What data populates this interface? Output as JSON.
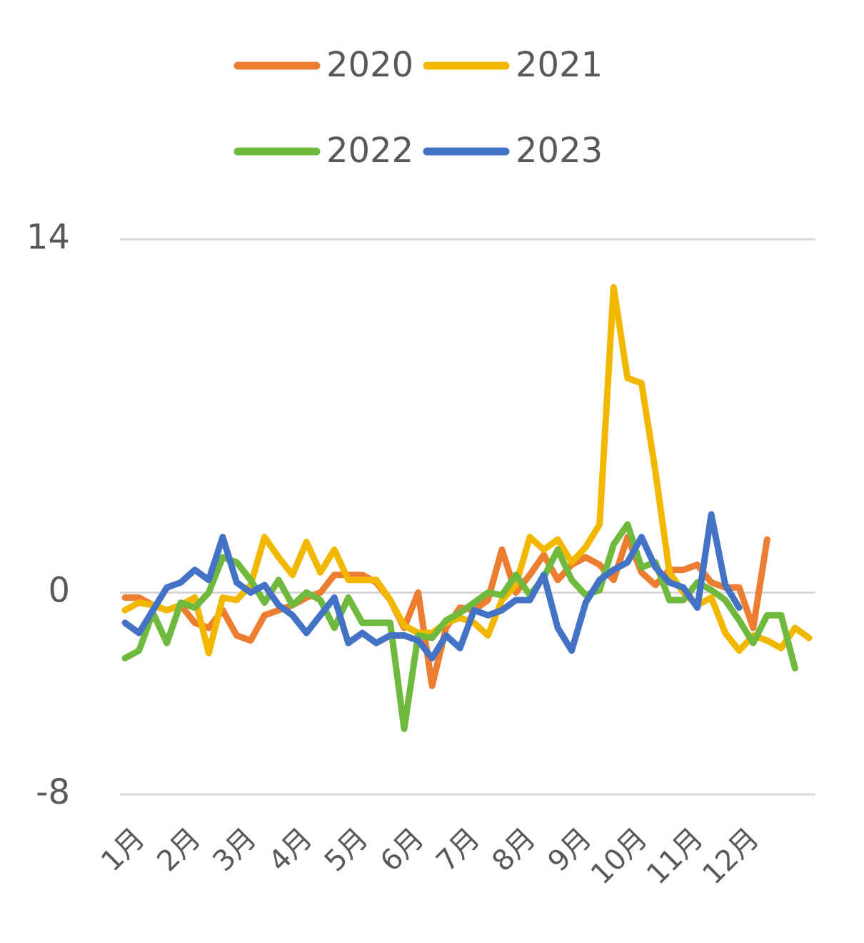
{
  "chart_data": {
    "type": "line",
    "categories": [
      "1月",
      null,
      null,
      null,
      "2月",
      null,
      null,
      null,
      "3月",
      null,
      null,
      null,
      "4月",
      null,
      null,
      null,
      "5月",
      null,
      null,
      null,
      "6月",
      null,
      null,
      null,
      "7月",
      null,
      null,
      null,
      "8月",
      null,
      null,
      null,
      "9月",
      null,
      null,
      null,
      "10月",
      null,
      null,
      null,
      "11月",
      null,
      null,
      null,
      "12月",
      null,
      null,
      null,
      null,
      null
    ],
    "series": [
      {
        "name": "2020",
        "color": "#ed7d31",
        "values": [
          -0.2,
          -0.2,
          -0.5,
          -0.7,
          -0.5,
          -1.2,
          -1.4,
          -0.7,
          -1.7,
          -1.9,
          -0.9,
          -0.7,
          -0.5,
          -0.2,
          0,
          0.7,
          0.7,
          0.7,
          0.4,
          -0.3,
          -1.4,
          0,
          -3.7,
          -1.4,
          -0.6,
          -0.7,
          -0.3,
          1.7,
          0,
          0.7,
          1.5,
          0.5,
          1.1,
          1.4,
          1.1,
          0.5,
          2.2,
          0.8,
          0.3,
          0.9,
          0.9,
          1.1,
          0.4,
          0.2,
          0.2,
          -1.4,
          2.1,
          null,
          null,
          null
        ]
      },
      {
        "name": "2021",
        "color": "#f2b800",
        "values": [
          -0.7,
          -0.4,
          -0.5,
          -0.7,
          -0.5,
          -0.2,
          -2.4,
          -0.2,
          -0.3,
          0.3,
          2.2,
          1.4,
          0.7,
          2.0,
          0.8,
          1.7,
          0.5,
          0.5,
          0.5,
          -0.3,
          -1.3,
          -1.6,
          -1.6,
          -1.2,
          -1.0,
          -1.2,
          -1.7,
          -0.3,
          0.3,
          2.2,
          1.7,
          2.1,
          1.2,
          1.8,
          2.7,
          12.1,
          8.5,
          8.3,
          4.8,
          0.8,
          0,
          -0.5,
          -0.2,
          -1.6,
          -2.3,
          -1.7,
          -1.9,
          -2.2,
          -1.4,
          -1.8
        ]
      },
      {
        "name": "2022",
        "color": "#70b93f",
        "values": [
          -2.6,
          -2.3,
          -0.8,
          -2.0,
          -0.4,
          -0.6,
          0,
          1.4,
          1.2,
          0.5,
          -0.4,
          0.5,
          -0.5,
          0,
          -0.3,
          -1.4,
          -0.2,
          -1.2,
          -1.2,
          -1.2,
          -5.4,
          -1.7,
          -1.8,
          -1.1,
          -0.8,
          -0.4,
          0,
          -0.1,
          0.7,
          -0.1,
          0.6,
          1.7,
          0.5,
          -0.1,
          0.1,
          1.9,
          2.7,
          1.0,
          1.2,
          -0.3,
          -0.3,
          0.4,
          0.1,
          -0.3,
          -1.1,
          -2.0,
          -0.9,
          -0.9,
          -3.0,
          null
        ]
      },
      {
        "name": "2023",
        "color": "#4472c4",
        "values": [
          -1.2,
          -1.6,
          -0.7,
          0.2,
          0.4,
          0.9,
          0.5,
          2.2,
          0.4,
          0,
          0.3,
          -0.5,
          -0.9,
          -1.6,
          -0.9,
          -0.2,
          -2.0,
          -1.6,
          -2.0,
          -1.7,
          -1.7,
          -1.9,
          -2.6,
          -1.7,
          -2.2,
          -0.7,
          -0.9,
          -0.7,
          -0.3,
          -0.3,
          0.7,
          -1.4,
          -2.3,
          -0.4,
          0.5,
          0.9,
          1.2,
          2.2,
          1.0,
          0.4,
          0.2,
          -0.6,
          3.1,
          0.3,
          -0.6,
          null,
          null,
          null,
          null,
          null
        ]
      }
    ],
    "ylim": [
      -8,
      14
    ],
    "yticks": [
      -8,
      0,
      14
    ],
    "grid": true,
    "legend": "top"
  }
}
